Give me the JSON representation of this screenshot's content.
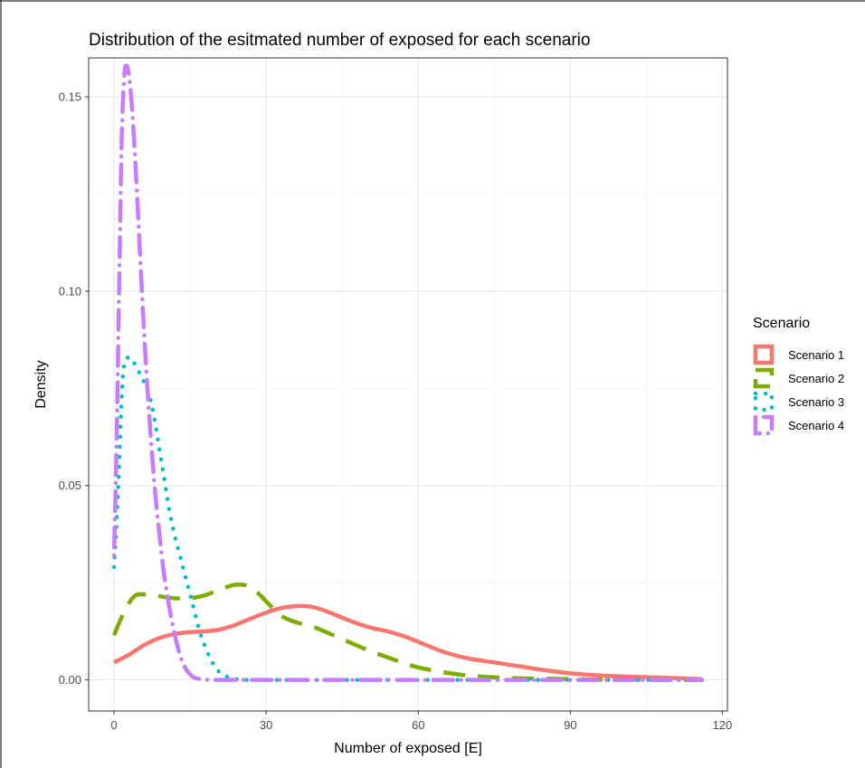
{
  "chart_data": {
    "type": "line",
    "title": "Distribution of the esitmated number of exposed for each scenario",
    "xlabel": "Number of exposed [E]",
    "ylabel": "Density",
    "xlim": [
      -5,
      121
    ],
    "ylim": [
      -0.008,
      0.16
    ],
    "xticks": [
      0,
      30,
      60,
      90,
      120
    ],
    "xtick_labels": [
      "0",
      "30",
      "60",
      "90",
      "120"
    ],
    "yticks": [
      0.0,
      0.05,
      0.1,
      0.15
    ],
    "ytick_labels": [
      "0.00",
      "0.05",
      "0.10",
      "0.15"
    ],
    "grid": true,
    "legend": {
      "title": "Scenario",
      "position": "right"
    },
    "series": [
      {
        "name": "Scenario 1",
        "color": "#F8766D",
        "linestyle": "solid",
        "x": [
          0,
          3,
          6,
          9,
          12,
          15,
          18,
          21,
          24,
          27,
          30,
          33,
          36,
          39,
          42,
          45,
          48,
          51,
          54,
          57,
          60,
          63,
          66,
          70,
          75,
          80,
          85,
          90,
          95,
          100,
          105,
          110,
          116
        ],
        "y": [
          0.0045,
          0.0065,
          0.009,
          0.0108,
          0.0118,
          0.0123,
          0.0125,
          0.013,
          0.0142,
          0.0158,
          0.0173,
          0.0185,
          0.019,
          0.0188,
          0.0176,
          0.016,
          0.0145,
          0.0133,
          0.0125,
          0.0113,
          0.0098,
          0.0082,
          0.0068,
          0.0055,
          0.0045,
          0.0035,
          0.0025,
          0.0017,
          0.0012,
          0.0009,
          0.0007,
          0.0005,
          0.0002
        ]
      },
      {
        "name": "Scenario 2",
        "color": "#7CAE00",
        "linestyle": "dashed",
        "x": [
          0,
          2,
          4,
          6,
          8,
          10,
          12,
          14,
          16,
          18,
          20,
          22,
          24,
          26,
          28,
          30,
          33,
          36,
          39,
          42,
          45,
          48,
          51,
          54,
          57,
          60,
          64,
          68,
          72,
          76,
          80,
          85,
          90,
          95,
          100,
          105,
          110,
          116
        ],
        "y": [
          0.0115,
          0.0175,
          0.0215,
          0.022,
          0.0218,
          0.0213,
          0.021,
          0.021,
          0.0212,
          0.0218,
          0.0228,
          0.0238,
          0.0245,
          0.0243,
          0.0228,
          0.0202,
          0.0165,
          0.0148,
          0.0138,
          0.0122,
          0.0105,
          0.0088,
          0.0072,
          0.0058,
          0.0044,
          0.0032,
          0.0022,
          0.0014,
          0.0009,
          0.0006,
          0.0004,
          0.0003,
          0.0002,
          0.0001,
          0.0001,
          0.0,
          0.0,
          0.0
        ]
      },
      {
        "name": "Scenario 3",
        "color": "#00BFC4",
        "linestyle": "dotted",
        "x": [
          0,
          0.5,
          1,
          1.5,
          2,
          3,
          4,
          5,
          6,
          7,
          8,
          9,
          10,
          11,
          12,
          13,
          14,
          15,
          16,
          17,
          18,
          19,
          20,
          21,
          22,
          23,
          24,
          26,
          30,
          35,
          40,
          50,
          60,
          70,
          80,
          90,
          100,
          110,
          116
        ],
        "y": [
          0.029,
          0.04,
          0.055,
          0.072,
          0.081,
          0.083,
          0.0815,
          0.079,
          0.0765,
          0.073,
          0.067,
          0.059,
          0.051,
          0.043,
          0.037,
          0.032,
          0.027,
          0.022,
          0.017,
          0.012,
          0.0085,
          0.0055,
          0.0032,
          0.0018,
          0.001,
          0.0005,
          0.0002,
          0.0,
          0.0,
          0.0,
          0.0,
          0.0,
          0.0,
          0.0,
          0.0,
          0.0,
          0.0,
          0.0,
          0.0
        ]
      },
      {
        "name": "Scenario 4",
        "color": "#C77CFF",
        "linestyle": "dotdash",
        "x": [
          0,
          0.5,
          1,
          1.5,
          2,
          2.5,
          3,
          3.5,
          4,
          4.5,
          5,
          5.5,
          6,
          6.5,
          7,
          7.5,
          8,
          8.5,
          9,
          9.5,
          10,
          11,
          12,
          13,
          14,
          15,
          16,
          18,
          20,
          25,
          30,
          40,
          50,
          60,
          70,
          80,
          90,
          100,
          110,
          116
        ],
        "y": [
          0.032,
          0.06,
          0.1,
          0.138,
          0.155,
          0.158,
          0.155,
          0.148,
          0.138,
          0.126,
          0.113,
          0.1,
          0.088,
          0.077,
          0.067,
          0.058,
          0.05,
          0.043,
          0.037,
          0.031,
          0.026,
          0.018,
          0.0115,
          0.0065,
          0.0032,
          0.0014,
          0.0005,
          0.0001,
          0.0,
          0.0,
          0.0,
          0.0,
          0.0,
          0.0,
          0.0,
          0.0,
          0.0,
          0.0,
          0.0,
          0.0
        ]
      }
    ]
  }
}
